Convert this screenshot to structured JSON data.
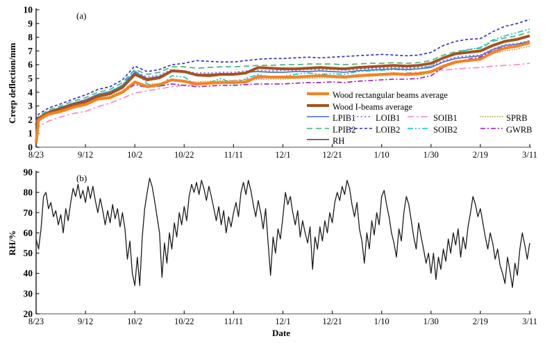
{
  "figure": {
    "panel_a_label": "(a)",
    "panel_b_label": "(b)",
    "xlabel": "Date",
    "bg_color": "#ffffff",
    "x_axis_color": "#8a8a8a",
    "y_axis_color": "#1a1a1a"
  },
  "chart_data": [
    {
      "id": "creep-deflection",
      "type": "line",
      "ylabel": "Creep deflection/mm",
      "ylim": [
        0,
        10
      ],
      "y_ticks": [
        0,
        1,
        2,
        3,
        4,
        5,
        6,
        7,
        8,
        9,
        10
      ],
      "xlim": [
        0,
        200
      ],
      "x_tick_days": [
        0,
        20,
        40,
        60,
        80,
        100,
        120,
        140,
        160,
        180,
        200
      ],
      "x_tick_labels": [
        "8/23",
        "9/12",
        "10/2",
        "10/22",
        "11/11",
        "12/1",
        "12/21",
        "1/10",
        "1/30",
        "2/19",
        "3/11"
      ],
      "grid": false,
      "legend_position": "inside-lower-right",
      "x": [
        0,
        1,
        5,
        10,
        15,
        20,
        25,
        30,
        35,
        40,
        45,
        50,
        55,
        60,
        65,
        70,
        75,
        80,
        85,
        90,
        95,
        100,
        105,
        110,
        115,
        120,
        125,
        130,
        135,
        140,
        145,
        150,
        155,
        160,
        165,
        170,
        175,
        180,
        185,
        190,
        195,
        200
      ],
      "series": [
        {
          "name": "LPIB1",
          "color": "#3a6bc9",
          "width": 1.6,
          "dash": "",
          "values": [
            1.8,
            2.15,
            2.6,
            2.9,
            3.2,
            3.45,
            3.85,
            4.05,
            4.5,
            5.45,
            5.0,
            5.15,
            5.6,
            5.5,
            5.3,
            5.3,
            5.35,
            5.35,
            5.45,
            5.5,
            5.45,
            5.45,
            5.5,
            5.5,
            5.55,
            5.5,
            5.45,
            5.55,
            5.6,
            5.65,
            5.7,
            5.65,
            5.7,
            5.8,
            6.2,
            6.45,
            6.55,
            6.65,
            7.1,
            7.4,
            7.5,
            7.7
          ]
        },
        {
          "name": "LPIB2",
          "color": "#3cb371",
          "width": 1.6,
          "dash": "8 5",
          "values": [
            1.9,
            2.25,
            2.7,
            3.0,
            3.35,
            3.6,
            4.0,
            4.2,
            4.7,
            5.65,
            5.3,
            5.45,
            5.85,
            5.85,
            5.75,
            5.8,
            5.85,
            5.85,
            5.9,
            5.95,
            5.95,
            6.0,
            6.0,
            6.05,
            6.05,
            6.05,
            6.0,
            6.05,
            6.1,
            6.1,
            6.15,
            6.1,
            6.15,
            6.3,
            6.7,
            6.95,
            7.1,
            7.2,
            7.7,
            7.95,
            8.1,
            8.4
          ]
        },
        {
          "name": "LOIB1",
          "color": "#9b6fe8",
          "width": 2,
          "dash": "0.5 5",
          "linecap": "round",
          "values": [
            1.75,
            2.1,
            2.55,
            2.85,
            3.15,
            3.4,
            3.8,
            4.0,
            4.45,
            5.5,
            5.1,
            5.25,
            5.65,
            5.55,
            5.4,
            5.4,
            5.45,
            5.45,
            5.55,
            5.6,
            5.55,
            5.6,
            5.6,
            5.65,
            5.65,
            5.65,
            5.6,
            5.65,
            5.7,
            5.75,
            5.8,
            5.75,
            5.8,
            5.9,
            6.3,
            6.55,
            6.65,
            6.7,
            7.15,
            7.45,
            7.55,
            7.75
          ]
        },
        {
          "name": "LOIB2",
          "color": "#2626d4",
          "width": 1.6,
          "dash": "4 3",
          "values": [
            2.0,
            2.4,
            2.85,
            3.15,
            3.5,
            3.8,
            4.2,
            4.4,
            4.9,
            5.9,
            5.5,
            5.65,
            6.0,
            6.1,
            6.3,
            6.25,
            6.2,
            6.2,
            6.3,
            6.4,
            6.45,
            6.45,
            6.5,
            6.55,
            6.5,
            6.55,
            6.6,
            6.65,
            6.7,
            6.75,
            6.7,
            6.65,
            6.7,
            6.9,
            7.4,
            7.7,
            7.85,
            7.9,
            8.4,
            8.8,
            9.0,
            9.3
          ]
        },
        {
          "name": "SOIB1",
          "color": "#ff7ec0",
          "width": 1.6,
          "dash": "9 4 2.5 4",
          "values": [
            1.2,
            1.5,
            1.9,
            2.2,
            2.45,
            2.6,
            2.95,
            3.2,
            3.55,
            3.95,
            4.1,
            4.25,
            4.4,
            4.5,
            4.55,
            4.65,
            4.75,
            4.85,
            4.95,
            5.0,
            5.05,
            5.1,
            5.1,
            5.15,
            5.15,
            5.2,
            5.2,
            5.25,
            5.3,
            5.3,
            5.35,
            5.4,
            5.45,
            5.5,
            5.6,
            5.7,
            5.75,
            5.8,
            5.9,
            5.95,
            6.0,
            6.1
          ]
        },
        {
          "name": "SOIB2",
          "color": "#00c5cd",
          "width": 1.6,
          "dash": "8 3 2 3 2 3",
          "values": [
            1.7,
            2.05,
            2.5,
            2.8,
            3.1,
            3.3,
            3.8,
            4.0,
            4.55,
            5.6,
            4.6,
            4.4,
            5.2,
            5.1,
            4.5,
            4.7,
            5.0,
            4.6,
            5.0,
            5.3,
            5.1,
            5.15,
            5.3,
            5.4,
            5.3,
            5.35,
            5.3,
            5.5,
            5.55,
            5.6,
            5.65,
            5.6,
            5.7,
            5.9,
            6.5,
            6.85,
            7.1,
            7.25,
            7.8,
            8.1,
            8.35,
            8.6
          ]
        },
        {
          "name": "SPRB",
          "color": "#b8ae4a",
          "width": 1.7,
          "dash": "0.5 3",
          "linecap": "round",
          "values": [
            1.85,
            2.2,
            2.6,
            2.85,
            3.1,
            3.25,
            3.6,
            3.75,
            4.1,
            4.7,
            4.55,
            4.65,
            4.85,
            4.8,
            4.75,
            4.8,
            4.85,
            4.85,
            4.9,
            4.95,
            4.95,
            4.95,
            5.0,
            5.0,
            5.05,
            5.05,
            5.0,
            5.1,
            5.15,
            5.2,
            5.25,
            5.2,
            5.25,
            5.4,
            5.8,
            6.1,
            6.25,
            6.35,
            6.8,
            7.0,
            7.15,
            7.35
          ]
        },
        {
          "name": "GWRB",
          "color": "#9913c4",
          "width": 1.6,
          "dash": "7 3 2 3",
          "values": [
            1.55,
            1.9,
            2.35,
            2.6,
            2.85,
            3.05,
            3.45,
            3.6,
            4.0,
            4.55,
            4.35,
            4.45,
            4.6,
            4.5,
            4.4,
            4.45,
            4.5,
            4.5,
            4.55,
            4.6,
            4.6,
            4.6,
            4.65,
            4.7,
            4.7,
            4.75,
            4.7,
            4.8,
            4.85,
            4.9,
            4.95,
            4.95,
            5.0,
            5.2,
            5.8,
            6.2,
            6.4,
            6.55,
            7.0,
            7.3,
            7.4,
            7.6
          ]
        },
        {
          "name": "Wood I-beams average",
          "color": "#a5531d",
          "width": 4,
          "dash": "",
          "values": [
            1.6,
            2.1,
            2.5,
            2.8,
            3.1,
            3.3,
            3.7,
            3.9,
            4.35,
            5.3,
            4.9,
            5.05,
            5.55,
            5.5,
            5.25,
            5.2,
            5.3,
            5.3,
            5.4,
            5.8,
            5.75,
            5.7,
            5.7,
            5.75,
            5.8,
            5.75,
            5.7,
            5.8,
            5.85,
            5.9,
            5.95,
            5.9,
            5.95,
            6.1,
            6.5,
            6.8,
            6.9,
            7.0,
            7.4,
            7.7,
            7.85,
            8.1
          ]
        },
        {
          "name": "Wood rectangular beams average",
          "color": "#f58220",
          "width": 4,
          "dash": "",
          "values": [
            0.3,
            2.0,
            2.4,
            2.6,
            2.9,
            3.1,
            3.5,
            3.6,
            4.0,
            4.75,
            4.4,
            4.55,
            4.9,
            4.8,
            4.6,
            4.65,
            4.7,
            4.7,
            4.75,
            5.15,
            5.1,
            5.1,
            5.1,
            5.15,
            5.2,
            5.15,
            5.1,
            5.2,
            5.25,
            5.3,
            5.35,
            5.3,
            5.35,
            5.5,
            5.9,
            6.2,
            6.3,
            6.4,
            6.9,
            7.2,
            7.35,
            7.6
          ]
        }
      ]
    },
    {
      "id": "relative-humidity",
      "type": "line",
      "ylabel": "RH/%",
      "ylim": [
        20,
        90
      ],
      "y_ticks": [
        20,
        30,
        40,
        50,
        60,
        70,
        80,
        90
      ],
      "xlim": [
        0,
        200
      ],
      "x_tick_days": [
        0,
        20,
        40,
        60,
        80,
        100,
        120,
        140,
        160,
        180,
        200
      ],
      "x_tick_labels": [
        "8/23",
        "9/12",
        "10/2",
        "10/22",
        "11/11",
        "12/1",
        "12/21",
        "1/10",
        "1/30",
        "2/19",
        "3/11"
      ],
      "grid": false,
      "x_step": 1,
      "series": [
        {
          "name": "RH",
          "color": "#1a1a1a",
          "width": 1.3,
          "dash": "",
          "values": [
            57,
            52,
            62,
            78,
            80,
            72,
            75,
            68,
            71,
            64,
            69,
            60,
            72,
            66,
            75,
            82,
            78,
            84,
            77,
            81,
            75,
            83,
            77,
            83,
            76,
            70,
            77,
            71,
            64,
            71,
            65,
            74,
            67,
            72,
            63,
            70,
            62,
            47,
            56,
            40,
            34,
            48,
            34,
            58,
            72,
            80,
            87,
            83,
            76,
            68,
            60,
            38,
            55,
            45,
            60,
            52,
            65,
            58,
            70,
            64,
            73,
            66,
            78,
            84,
            80,
            85,
            79,
            86,
            82,
            76,
            83,
            78,
            72,
            66,
            73,
            64,
            71,
            60,
            68,
            63,
            70,
            75,
            68,
            80,
            85,
            79,
            86,
            81,
            74,
            68,
            76,
            70,
            62,
            72,
            55,
            39,
            58,
            50,
            62,
            57,
            68,
            80,
            74,
            78,
            70,
            64,
            71,
            58,
            66,
            60,
            55,
            63,
            42,
            58,
            52,
            63,
            56,
            66,
            60,
            70,
            65,
            75,
            80,
            76,
            83,
            79,
            86,
            82,
            74,
            68,
            75,
            62,
            56,
            45,
            60,
            52,
            66,
            59,
            70,
            64,
            78,
            81,
            74,
            68,
            60,
            55,
            48,
            62,
            56,
            70,
            78,
            74,
            66,
            58,
            52,
            65,
            58,
            52,
            45,
            50,
            40,
            50,
            37,
            48,
            42,
            52,
            46,
            57,
            50,
            60,
            54,
            62,
            48,
            58,
            52,
            63,
            70,
            78,
            74,
            68,
            72,
            65,
            58,
            52,
            60,
            55,
            47,
            52,
            44,
            40,
            35,
            48,
            41,
            33,
            45,
            39,
            52,
            60,
            54,
            47,
            55
          ]
        }
      ]
    }
  ],
  "legend": {
    "row_height": 16.5,
    "col_offsets": [
      0,
      62,
      145,
      250
    ],
    "items": [
      {
        "label": "Wood rectangular beams average",
        "row": 0,
        "col": 0
      },
      {
        "label": "Wood I-beams average",
        "row": 1,
        "col": 0
      },
      {
        "label": "LPIB1",
        "row": 2,
        "col": 0
      },
      {
        "label": "LOIB1",
        "row": 2,
        "col": 1
      },
      {
        "label": "SOIB1",
        "row": 2,
        "col": 2
      },
      {
        "label": "SPRB",
        "row": 2,
        "col": 3
      },
      {
        "label": "LPIB2",
        "row": 3,
        "col": 0
      },
      {
        "label": "LOIB2",
        "row": 3,
        "col": 1
      },
      {
        "label": "SOIB2",
        "row": 3,
        "col": 2
      },
      {
        "label": "GWRB",
        "row": 3,
        "col": 3
      },
      {
        "label": "RH",
        "row": 4,
        "col": 0
      }
    ]
  }
}
